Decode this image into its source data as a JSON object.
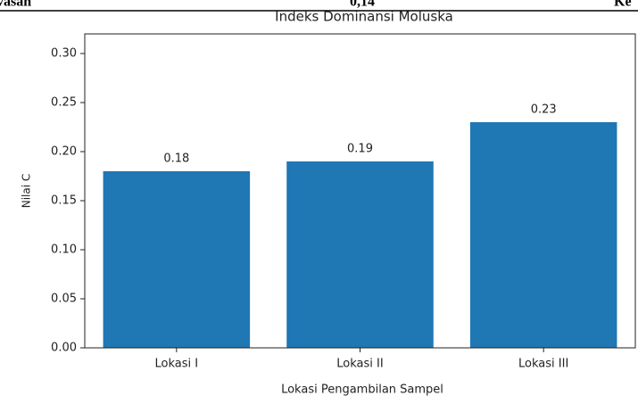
{
  "document": {
    "cells": [
      "vasan",
      "0,14",
      "Ke"
    ]
  },
  "chart_data": {
    "type": "bar",
    "title": "Indeks Dominansi Moluska",
    "x_label": "Lokasi Pengambilan Sampel",
    "y_label": "Nilai C",
    "categories": [
      "Lokasi I",
      "Lokasi II",
      "Lokasi III"
    ],
    "values": [
      0.18,
      0.19,
      0.23
    ],
    "color": "#1f77b4",
    "ylim": [
      0,
      0.32
    ],
    "yticks": [
      {
        "value": 0,
        "label": "0.00"
      },
      {
        "value": 0.05,
        "label": "0.05"
      },
      {
        "value": 0.1,
        "label": "0.10"
      },
      {
        "value": 0.15,
        "label": "0.15"
      },
      {
        "value": 0.2,
        "label": "0.20"
      },
      {
        "value": 0.25,
        "label": "0.25"
      },
      {
        "value": 0.3,
        "label": "0.30"
      }
    ],
    "grid": false
  }
}
